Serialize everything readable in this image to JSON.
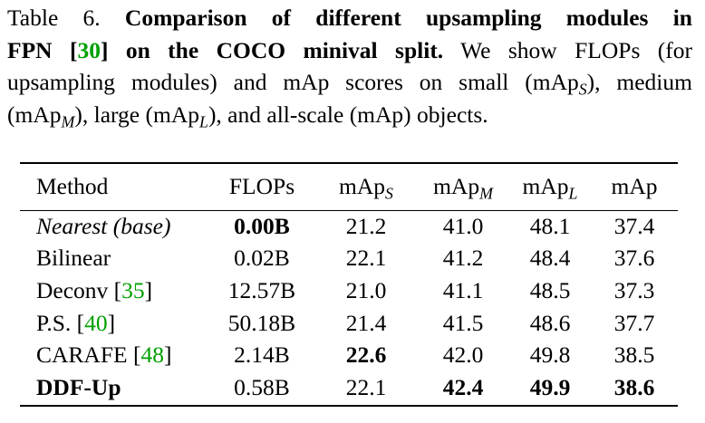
{
  "link_color": "#00a000",
  "caption": {
    "lines": [
      [
        {
          "text": "Table 6. ",
          "style": "normal"
        },
        {
          "text": "Comparison of different upsampling modules in",
          "style": "bold"
        }
      ],
      [
        {
          "text": "FPN [",
          "style": "bold"
        },
        {
          "text": "30",
          "style": "bold-ref"
        },
        {
          "text": "] on the COCO minival split.",
          "style": "bold"
        },
        {
          "text": " We show FLOPs (for",
          "style": "normal"
        }
      ],
      [
        {
          "text": "upsampling modules) and mAp scores on small (mAp",
          "style": "normal"
        },
        {
          "text": "S",
          "style": "sub"
        },
        {
          "text": "), medium",
          "style": "normal"
        }
      ],
      [
        {
          "text": "(mAp",
          "style": "normal"
        },
        {
          "text": "M",
          "style": "sub"
        },
        {
          "text": "), large (mAp",
          "style": "normal"
        },
        {
          "text": "L",
          "style": "sub"
        },
        {
          "text": "), and all-scale (mAp) objects.",
          "style": "normal"
        }
      ]
    ]
  },
  "table": {
    "header": [
      [
        {
          "text": "Method",
          "style": "normal"
        }
      ],
      [
        {
          "text": "FLOPs",
          "style": "normal"
        }
      ],
      [
        {
          "text": "mAp",
          "style": "normal"
        },
        {
          "text": "S",
          "style": "sub"
        }
      ],
      [
        {
          "text": "mAp",
          "style": "normal"
        },
        {
          "text": "M",
          "style": "sub"
        }
      ],
      [
        {
          "text": "mAp",
          "style": "normal"
        },
        {
          "text": "L",
          "style": "sub"
        }
      ],
      [
        {
          "text": "mAp",
          "style": "normal"
        }
      ]
    ],
    "rows": [
      [
        [
          {
            "text": "Nearest (base)",
            "style": "italic"
          }
        ],
        {
          "text": "0.00B",
          "style": "bold"
        },
        {
          "text": "21.2",
          "style": "normal"
        },
        {
          "text": "41.0",
          "style": "normal"
        },
        {
          "text": "48.1",
          "style": "normal"
        },
        {
          "text": "37.4",
          "style": "normal"
        }
      ],
      [
        [
          {
            "text": "Bilinear",
            "style": "normal"
          }
        ],
        {
          "text": "0.02B",
          "style": "normal"
        },
        {
          "text": "22.1",
          "style": "normal"
        },
        {
          "text": "41.2",
          "style": "normal"
        },
        {
          "text": "48.4",
          "style": "normal"
        },
        {
          "text": "37.6",
          "style": "normal"
        }
      ],
      [
        [
          {
            "text": "Deconv [",
            "style": "normal"
          },
          {
            "text": "35",
            "style": "ref"
          },
          {
            "text": "]",
            "style": "normal"
          }
        ],
        {
          "text": "12.57B",
          "style": "normal"
        },
        {
          "text": "21.0",
          "style": "normal"
        },
        {
          "text": "41.1",
          "style": "normal"
        },
        {
          "text": "48.5",
          "style": "normal"
        },
        {
          "text": "37.3",
          "style": "normal"
        }
      ],
      [
        [
          {
            "text": "P.S. [",
            "style": "normal"
          },
          {
            "text": "40",
            "style": "ref"
          },
          {
            "text": "]",
            "style": "normal"
          }
        ],
        {
          "text": "50.18B",
          "style": "normal"
        },
        {
          "text": "21.4",
          "style": "normal"
        },
        {
          "text": "41.5",
          "style": "normal"
        },
        {
          "text": "48.6",
          "style": "normal"
        },
        {
          "text": "37.7",
          "style": "normal"
        }
      ],
      [
        [
          {
            "text": "CARAFE [",
            "style": "normal"
          },
          {
            "text": "48",
            "style": "ref"
          },
          {
            "text": "]",
            "style": "normal"
          }
        ],
        {
          "text": "2.14B",
          "style": "normal"
        },
        {
          "text": "22.6",
          "style": "bold"
        },
        {
          "text": "42.0",
          "style": "normal"
        },
        {
          "text": "49.8",
          "style": "normal"
        },
        {
          "text": "38.5",
          "style": "normal"
        }
      ],
      [
        [
          {
            "text": "DDF-Up",
            "style": "bold"
          }
        ],
        {
          "text": "0.58B",
          "style": "normal"
        },
        {
          "text": "22.1",
          "style": "normal"
        },
        {
          "text": "42.4",
          "style": "bold"
        },
        {
          "text": "49.9",
          "style": "bold"
        },
        {
          "text": "38.6",
          "style": "bold"
        }
      ]
    ]
  }
}
